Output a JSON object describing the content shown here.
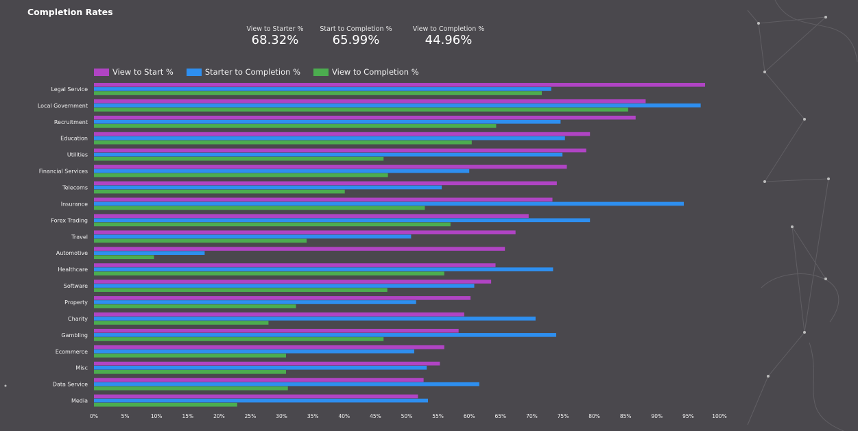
{
  "title": "Completion Rates",
  "kpis": [
    {
      "label": "View to Starter %",
      "value": "68.32%"
    },
    {
      "label": "Start to Completion %",
      "value": "65.99%"
    },
    {
      "label": "View to Completion %",
      "value": "44.96%"
    }
  ],
  "colors": {
    "background": "#4a484d",
    "view_to_start": "#b044c4",
    "starter_to_completion": "#2e8ff0",
    "view_to_completion": "#4cad4f"
  },
  "chart_data": {
    "type": "bar",
    "orientation": "horizontal",
    "title": "Completion Rates",
    "xlabel": "",
    "ylabel": "",
    "xlim": [
      0,
      100
    ],
    "x_ticks": [
      "0%",
      "5%",
      "10%",
      "15%",
      "20%",
      "25%",
      "30%",
      "35%",
      "40%",
      "45%",
      "50%",
      "55%",
      "60%",
      "65%",
      "70%",
      "75%",
      "80%",
      "85%",
      "90%",
      "95%",
      "100%"
    ],
    "legend_position": "top-left",
    "categories": [
      "Legal Service",
      "Local Government",
      "Recruitment",
      "Education",
      "Utilities",
      "Financial Services",
      "Telecoms",
      "Insurance",
      "Forex Trading",
      "Travel",
      "Automotive",
      "Healthcare",
      "Software",
      "Property",
      "Charity",
      "Gambling",
      "Ecommerce",
      "Misc",
      "Data Service",
      "Media"
    ],
    "series": [
      {
        "name": "View to Start %",
        "values": [
          97.7,
          88.2,
          86.6,
          79.3,
          78.7,
          75.6,
          74.0,
          73.3,
          69.5,
          67.4,
          65.7,
          64.2,
          63.5,
          60.2,
          59.2,
          58.3,
          56.0,
          55.3,
          52.7,
          51.8
        ]
      },
      {
        "name": "Starter to Completion %",
        "values": [
          73.1,
          97.0,
          74.6,
          75.3,
          74.9,
          60.0,
          55.6,
          94.3,
          79.3,
          50.7,
          17.7,
          73.4,
          60.8,
          51.5,
          70.6,
          73.9,
          51.2,
          53.2,
          61.6,
          53.4
        ]
      },
      {
        "name": "View to Completion %",
        "values": [
          71.6,
          85.4,
          64.3,
          60.4,
          46.3,
          47.0,
          40.1,
          52.9,
          57.0,
          34.0,
          9.6,
          56.0,
          46.9,
          32.3,
          27.9,
          46.3,
          30.7,
          30.7,
          31.0,
          22.9
        ]
      }
    ]
  }
}
